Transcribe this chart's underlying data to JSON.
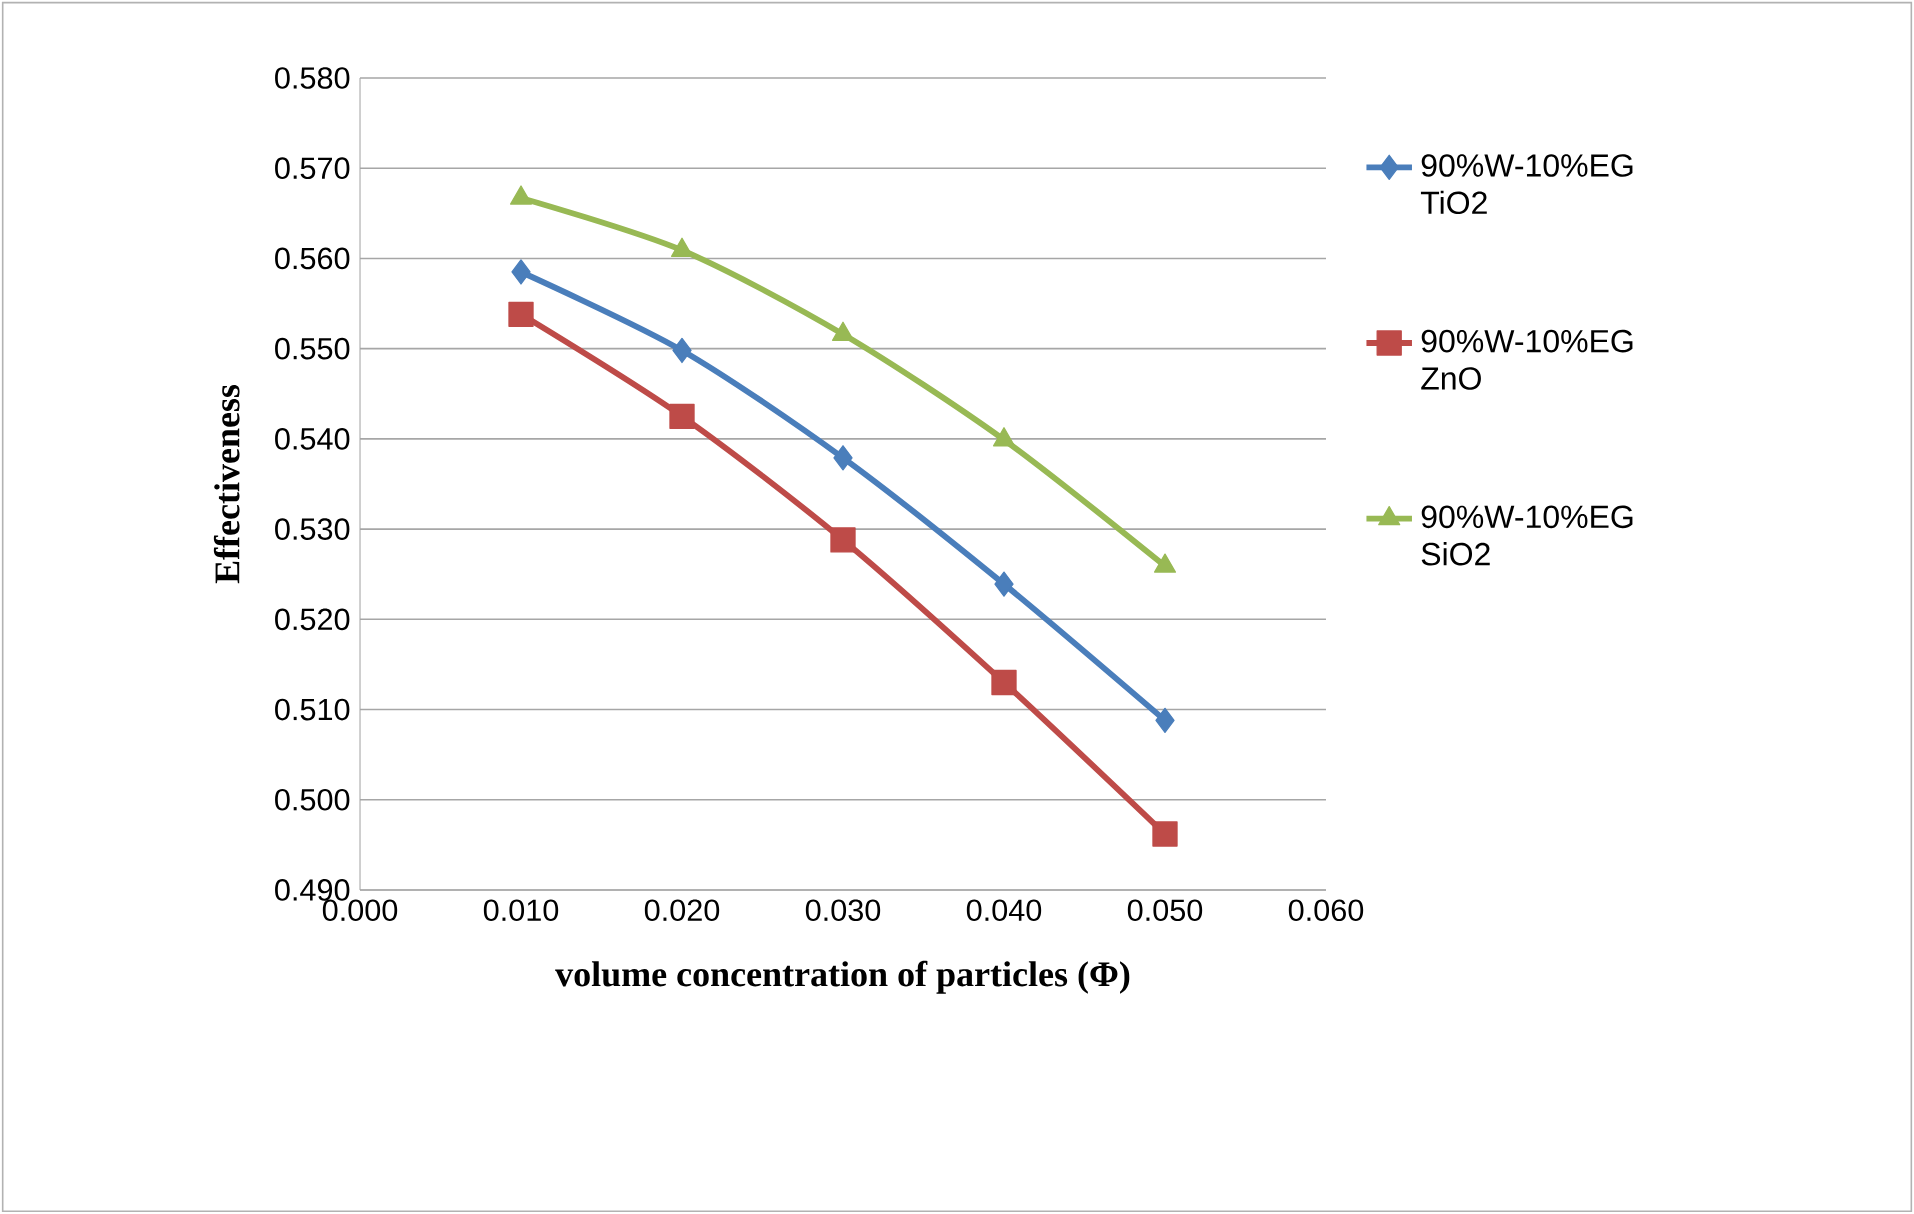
{
  "chart_data": {
    "type": "line",
    "xlabel": "volume concentration of particles (Φ)",
    "ylabel": "Effectiveness",
    "x": [
      0.01,
      0.02,
      0.03,
      0.04,
      0.05
    ],
    "series": [
      {
        "name": "90%W-10%EG TiO2",
        "color": "#4a7ebb",
        "marker": "diamond",
        "values": [
          0.5585,
          0.5498,
          0.5379,
          0.5239,
          0.5088
        ]
      },
      {
        "name": "90%W-10%EG ZnO",
        "color": "#be4b48",
        "marker": "square",
        "values": [
          0.5538,
          0.5425,
          0.5288,
          0.513,
          0.4962
        ]
      },
      {
        "name": "90%W-10%EG SiO2",
        "color": "#98b954",
        "marker": "triangle",
        "values": [
          0.5667,
          0.5609,
          0.5516,
          0.5399,
          0.5259
        ]
      }
    ],
    "xlim": [
      0,
      0.06
    ],
    "xticks": [
      {
        "value": 0,
        "label": "0.000"
      },
      {
        "value": 0.01,
        "label": "0.010"
      },
      {
        "value": 0.02,
        "label": "0.020"
      },
      {
        "value": 0.03,
        "label": "0.030"
      },
      {
        "value": 0.04,
        "label": "0.040"
      },
      {
        "value": 0.05,
        "label": "0.050"
      },
      {
        "value": 0.06,
        "label": "0.060"
      }
    ],
    "ylim": [
      0.49,
      0.58
    ],
    "yticks": [
      {
        "value": 0.49,
        "label": "0.490"
      },
      {
        "value": 0.5,
        "label": "0.500"
      },
      {
        "value": 0.51,
        "label": "0.510"
      },
      {
        "value": 0.52,
        "label": "0.520"
      },
      {
        "value": 0.53,
        "label": "0.530"
      },
      {
        "value": 0.54,
        "label": "0.540"
      },
      {
        "value": 0.55,
        "label": "0.550"
      },
      {
        "value": 0.56,
        "label": "0.560"
      },
      {
        "value": 0.57,
        "label": "0.570"
      },
      {
        "value": 0.58,
        "label": "0.580"
      }
    ],
    "grid": "y",
    "legend": "right"
  }
}
